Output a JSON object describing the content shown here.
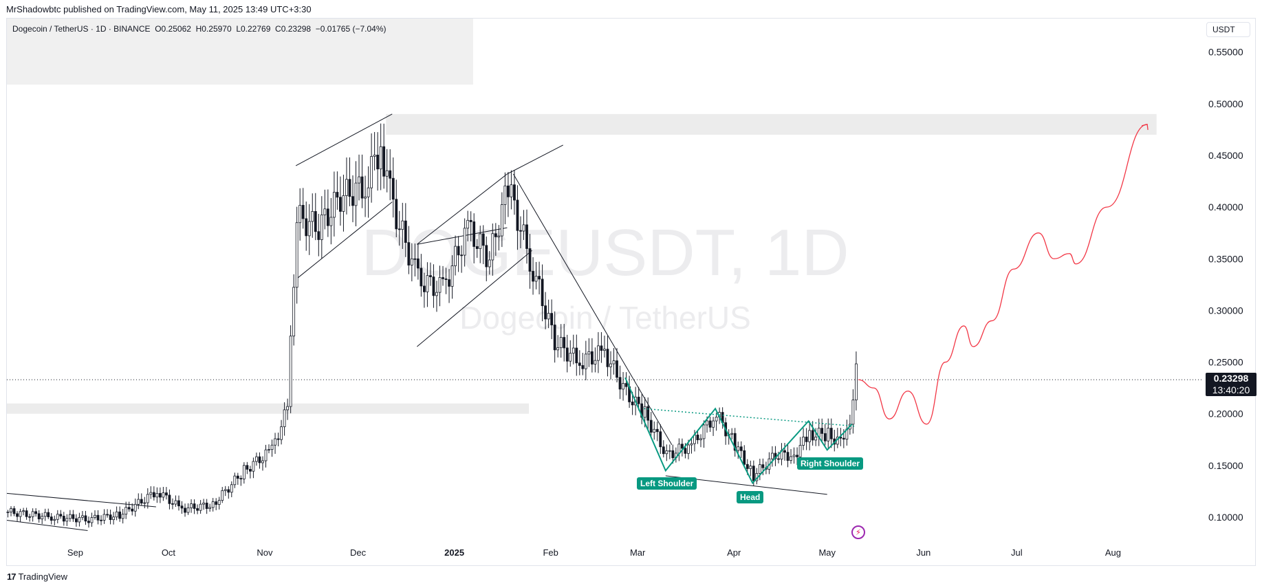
{
  "published": "MrShadowbtc published on TradingView.com, May 11, 2025 13:49 UTC+3:30",
  "legend": {
    "symbol": "Dogecoin / TetherUS · 1D · BINANCE",
    "open": "O0.25062",
    "high": "H0.25970",
    "low": "L0.22769",
    "close": "C0.23298",
    "change": "−0.01765 (−7.04%)"
  },
  "currency": "USDT",
  "watermark": {
    "main": "DOGEUSDT, 1D",
    "sub": "Dogecoin / TetherUS"
  },
  "last_price": {
    "value": "0.23298",
    "countdown": "13:40:20"
  },
  "labels": {
    "left_shoulder": "Left Shoulder",
    "head": "Head",
    "right_shoulder": "Right Shoulder"
  },
  "footer": {
    "brand": "TradingView"
  },
  "colors": {
    "pattern": "#089981",
    "projection": "#f23645",
    "axis": "#131722"
  },
  "chart_data": {
    "type": "candlestick",
    "symbol": "DOGEUSDT",
    "timeframe": "1D",
    "ylim": [
      0.07,
      0.58
    ],
    "y_ticks": [
      "0.10000",
      "0.15000",
      "0.20000",
      "0.25000",
      "0.30000",
      "0.35000",
      "0.40000",
      "0.45000",
      "0.50000",
      "0.55000"
    ],
    "x_ticks": [
      "Sep",
      "Oct",
      "Nov",
      "Dec",
      "2025",
      "Feb",
      "Mar",
      "Apr",
      "May",
      "Jun",
      "Jul",
      "Aug"
    ],
    "last_close": 0.23298,
    "price_path": [
      [
        "2024-08-10",
        0.105
      ],
      [
        "2024-08-25",
        0.1
      ],
      [
        "2024-09-05",
        0.098
      ],
      [
        "2024-09-15",
        0.102
      ],
      [
        "2024-09-27",
        0.125
      ],
      [
        "2024-10-05",
        0.108
      ],
      [
        "2024-10-15",
        0.112
      ],
      [
        "2024-10-25",
        0.145
      ],
      [
        "2024-11-03",
        0.165
      ],
      [
        "2024-11-08",
        0.205
      ],
      [
        "2024-11-11",
        0.39
      ],
      [
        "2024-11-18",
        0.38
      ],
      [
        "2024-11-25",
        0.41
      ],
      [
        "2024-12-03",
        0.42
      ],
      [
        "2024-12-08",
        0.46
      ],
      [
        "2024-12-12",
        0.4
      ],
      [
        "2024-12-20",
        0.33
      ],
      [
        "2024-12-28",
        0.32
      ],
      [
        "2025-01-05",
        0.38
      ],
      [
        "2025-01-12",
        0.35
      ],
      [
        "2025-01-18",
        0.42
      ],
      [
        "2025-01-26",
        0.34
      ],
      [
        "2025-02-02",
        0.27
      ],
      [
        "2025-02-10",
        0.25
      ],
      [
        "2025-02-18",
        0.26
      ],
      [
        "2025-02-25",
        0.22
      ],
      [
        "2025-03-03",
        0.2
      ],
      [
        "2025-03-10",
        0.16
      ],
      [
        "2025-03-18",
        0.17
      ],
      [
        "2025-03-26",
        0.2
      ],
      [
        "2025-04-01",
        0.17
      ],
      [
        "2025-04-07",
        0.14
      ],
      [
        "2025-04-14",
        0.16
      ],
      [
        "2025-04-20",
        0.16
      ],
      [
        "2025-04-25",
        0.18
      ],
      [
        "2025-05-01",
        0.18
      ],
      [
        "2025-05-06",
        0.17
      ],
      [
        "2025-05-09",
        0.21
      ],
      [
        "2025-05-10",
        0.25
      ],
      [
        "2025-05-11",
        0.23298
      ]
    ],
    "projection": [
      [
        "2025-05-11",
        0.233
      ],
      [
        "2025-05-16",
        0.225
      ],
      [
        "2025-05-21",
        0.195
      ],
      [
        "2025-05-27",
        0.222
      ],
      [
        "2025-06-02",
        0.19
      ],
      [
        "2025-06-08",
        0.25
      ],
      [
        "2025-06-14",
        0.285
      ],
      [
        "2025-06-17",
        0.265
      ],
      [
        "2025-06-23",
        0.29
      ],
      [
        "2025-06-30",
        0.34
      ],
      [
        "2025-07-08",
        0.375
      ],
      [
        "2025-07-13",
        0.35
      ],
      [
        "2025-07-18",
        0.355
      ],
      [
        "2025-07-20",
        0.345
      ],
      [
        "2025-07-30",
        0.4
      ],
      [
        "2025-08-12",
        0.48
      ]
    ],
    "zones": [
      {
        "from": "2024-08-10",
        "to": "2025-01-25",
        "low": 0.2,
        "high": 0.21
      },
      {
        "from": "2024-12-10",
        "to": "2025-08-15",
        "low": 0.47,
        "high": 0.49
      }
    ],
    "pattern": "inverse head and shoulders",
    "neckline": [
      [
        "2025-03-03",
        0.205
      ],
      [
        "2025-05-10",
        0.188
      ]
    ]
  }
}
